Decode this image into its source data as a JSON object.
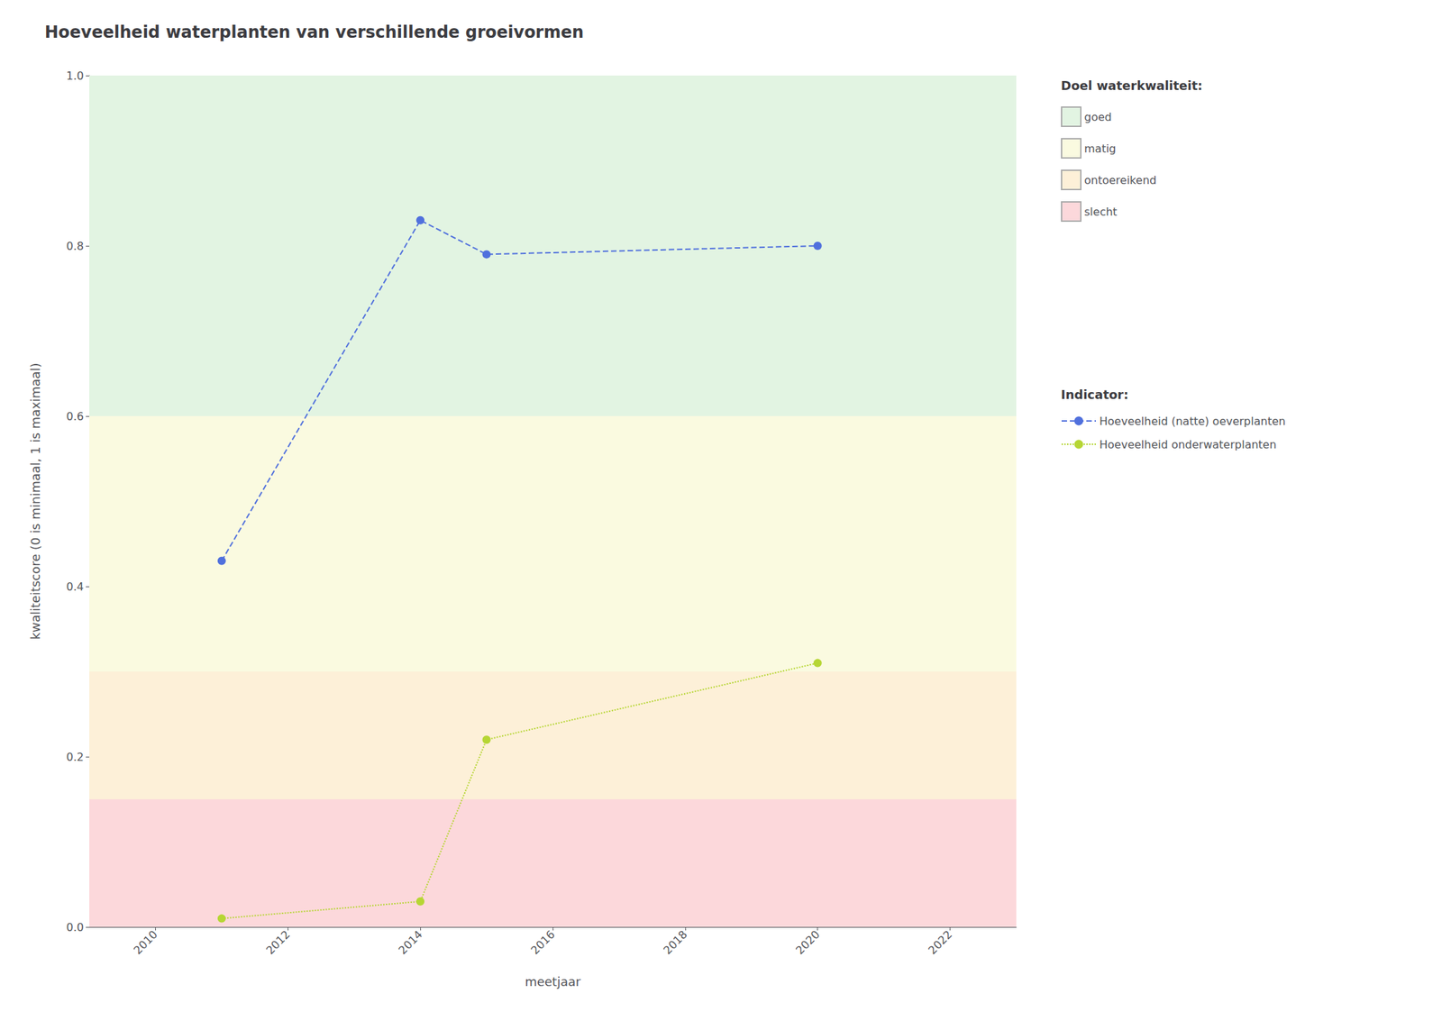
{
  "chart_data": {
    "type": "line",
    "title": "Hoeveelheid waterplanten van verschillende groeivormen",
    "x_label": "meetjaar",
    "y_label": "kwaliteitscore (0 is minimaal, 1 is maximaal)",
    "xlim": [
      2009.0,
      2023.0
    ],
    "ylim": [
      0.0,
      1.0
    ],
    "xticks": [
      2010,
      2012,
      2014,
      2016,
      2018,
      2020,
      2022
    ],
    "yticks": [
      {
        "value": 0.0,
        "label": "0.0"
      },
      0.2,
      0.4,
      0.6,
      0.8,
      {
        "value": 1.0,
        "label": "1.0"
      }
    ],
    "grid": true,
    "zones_legend_title": "Doel waterkwaliteit:",
    "zones": [
      {
        "label": "goed",
        "ymin": 0.6,
        "ymax": 1.0,
        "color": "#e2f4e2"
      },
      {
        "label": "matig",
        "ymin": 0.3,
        "ymax": 0.6,
        "color": "#fafae0"
      },
      {
        "label": "ontoereikend",
        "ymin": 0.15,
        "ymax": 0.3,
        "color": "#fdf0d8"
      },
      {
        "label": "slecht",
        "ymin": 0.0,
        "ymax": 0.15,
        "color": "#fcd8db"
      }
    ],
    "series_legend_title": "Indicator:",
    "series": [
      {
        "name": "Hoeveelheid (natte) oeverplanten",
        "x": [
          2011,
          2014,
          2015,
          2020
        ],
        "values": [
          0.43,
          0.83,
          0.79,
          0.8
        ],
        "line_style": "dashed",
        "marker": "circle"
      },
      {
        "name": "Hoeveelheid onderwaterplanten",
        "x": [
          2011,
          2014,
          2015,
          2020
        ],
        "values": [
          0.01,
          0.03,
          0.22,
          0.31
        ],
        "line_style": "dotted",
        "marker": "circle"
      }
    ]
  }
}
